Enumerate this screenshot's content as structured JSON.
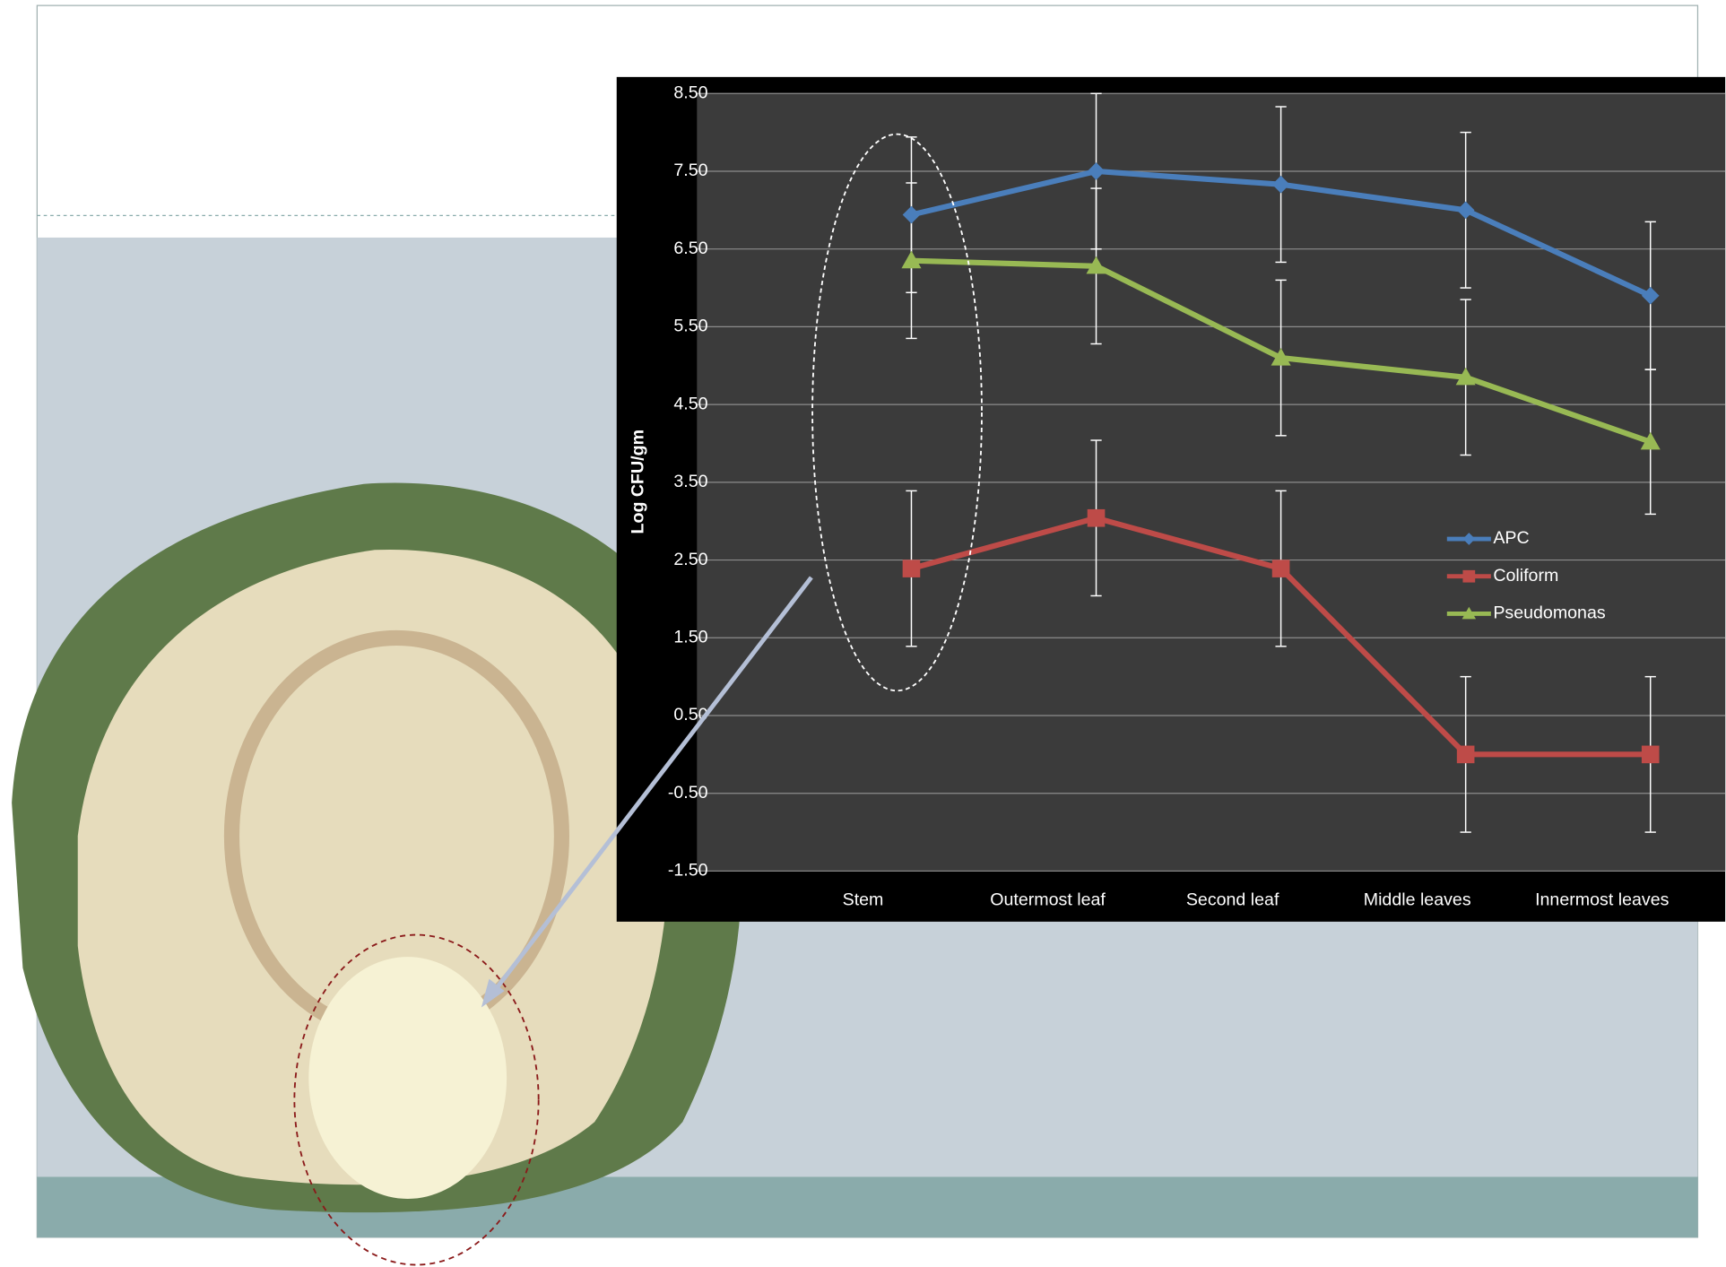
{
  "chart_data": {
    "type": "line",
    "y_label": "Log CFU/gm",
    "categories": [
      "Stem",
      "Outermost leaf",
      "Second  leaf",
      "Middle leaves",
      "Innermost leaves"
    ],
    "series": [
      {
        "name": "APC",
        "color": "#4a7ebb",
        "marker": "diamond",
        "values": [
          6.94,
          7.5,
          7.33,
          7.0,
          5.9
        ],
        "errors": [
          1.0,
          1.0,
          1.0,
          1.0,
          0.95
        ]
      },
      {
        "name": "Coliform",
        "color": "#be4b48",
        "marker": "square",
        "values": [
          2.39,
          3.04,
          2.39,
          0.0,
          0.0
        ],
        "errors": [
          1.0,
          1.0,
          1.0,
          1.0,
          1.0
        ]
      },
      {
        "name": "Pseudomonas",
        "color": "#98b954",
        "marker": "triangle",
        "values": [
          6.35,
          6.28,
          5.1,
          4.85,
          4.02
        ],
        "errors": [
          1.0,
          1.0,
          1.0,
          1.0,
          0.93
        ]
      }
    ],
    "ylim": [
      -1.5,
      8.5
    ],
    "yticks": [
      {
        "value": -1.5,
        "label": "-1.50"
      },
      {
        "value": -0.5,
        "label": "-0.50"
      },
      {
        "value": 0.5,
        "label": "0.50"
      },
      {
        "value": 1.5,
        "label": "1.50"
      },
      {
        "value": 2.5,
        "label": "2.50"
      },
      {
        "value": 3.5,
        "label": "3.50"
      },
      {
        "value": 4.5,
        "label": "4.50"
      },
      {
        "value": 5.5,
        "label": "5.50"
      },
      {
        "value": 6.5,
        "label": "6.50"
      },
      {
        "value": 7.5,
        "label": "7.50"
      },
      {
        "value": 8.5,
        "label": "8.50"
      }
    ],
    "grid": true,
    "legend": "right"
  }
}
